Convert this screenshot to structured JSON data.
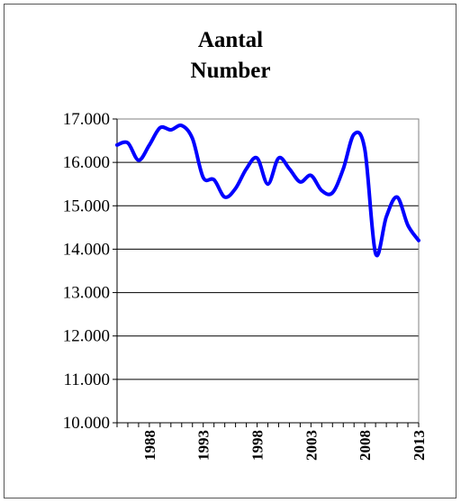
{
  "chart_data": {
    "type": "line",
    "title": "Aantal",
    "subtitle": "Number",
    "xlabel": "",
    "ylabel": "",
    "xlim": [
      1985,
      2013
    ],
    "ylim": [
      10000,
      17000
    ],
    "y_ticks": [
      10000,
      11000,
      12000,
      13000,
      14000,
      15000,
      16000,
      17000
    ],
    "y_tick_labels": [
      "10.000",
      "11.000",
      "12.000",
      "13.000",
      "14.000",
      "15.000",
      "16.000",
      "17.000"
    ],
    "x_tick_labels": [
      "1988",
      "1993",
      "1998",
      "2003",
      "2008",
      "2013"
    ],
    "x_tick_values": [
      1988,
      1993,
      1998,
      2003,
      2008,
      2013
    ],
    "grid": "horizontal",
    "legend": "none",
    "series": [
      {
        "color": "#0000ff",
        "x": [
          1985,
          1986,
          1987,
          1988,
          1989,
          1990,
          1991,
          1992,
          1993,
          1994,
          1995,
          1996,
          1997,
          1998,
          1999,
          2000,
          2001,
          2002,
          2003,
          2004,
          2005,
          2006,
          2007,
          2008,
          2009,
          2010,
          2011,
          2012,
          2013
        ],
        "values": [
          16400,
          16450,
          16050,
          16400,
          16800,
          16750,
          16850,
          16550,
          15650,
          15600,
          15200,
          15400,
          15850,
          16100,
          15500,
          16100,
          15850,
          15550,
          15700,
          15350,
          15300,
          15850,
          16650,
          16300,
          13900,
          14750,
          15200,
          14550,
          14200
        ]
      }
    ]
  }
}
